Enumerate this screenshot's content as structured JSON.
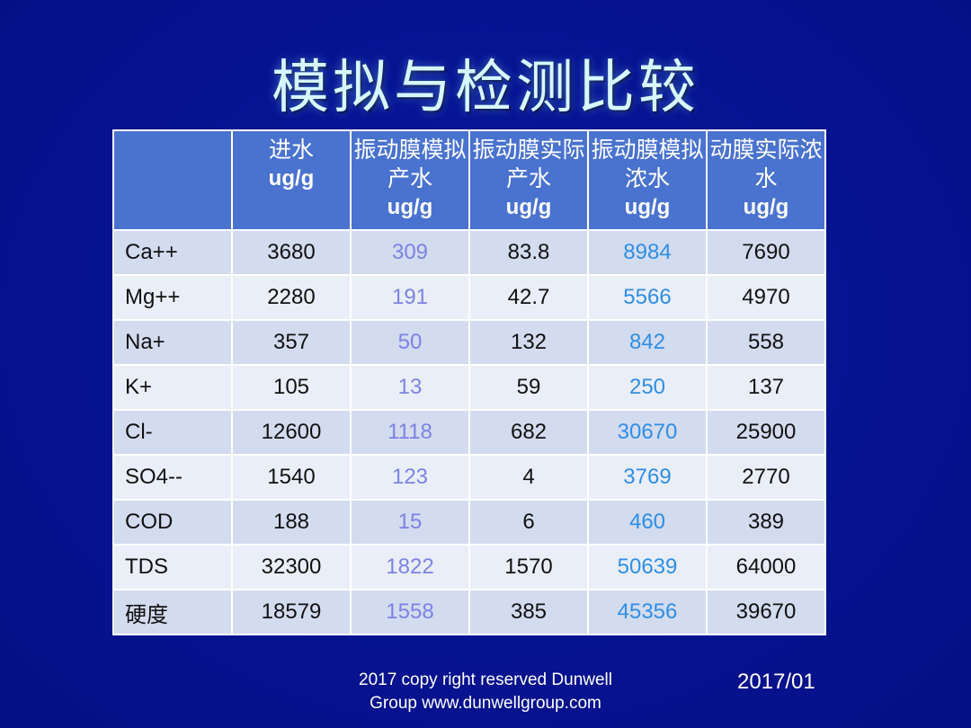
{
  "title": "模拟与检测比较",
  "table": {
    "headers": [
      {
        "label": "",
        "unit": ""
      },
      {
        "label": "进水",
        "unit": "ug/g"
      },
      {
        "label": "振动膜模拟产水",
        "unit": "ug/g"
      },
      {
        "label": "振动膜实际产水",
        "unit": "ug/g"
      },
      {
        "label": "振动膜模拟浓水",
        "unit": "ug/g"
      },
      {
        "label": "动膜实际浓水",
        "unit": "ug/g"
      }
    ],
    "rows": [
      [
        "Ca++",
        "3680",
        "309",
        "83.8",
        "8984",
        "7690"
      ],
      [
        "Mg++",
        "2280",
        "191",
        "42.7",
        "5566",
        "4970"
      ],
      [
        "Na+",
        "357",
        "50",
        "132",
        "842",
        "558"
      ],
      [
        "K+",
        "105",
        "13",
        "59",
        "250",
        "137"
      ],
      [
        "Cl-",
        "12600",
        "1118",
        "682",
        "30670",
        "25900"
      ],
      [
        "SO4--",
        "1540",
        "123",
        "4",
        "3769",
        "2770"
      ],
      [
        "COD",
        "188",
        "15",
        "6",
        "460",
        "389"
      ],
      [
        "TDS",
        "32300",
        "1822",
        "1570",
        "50639",
        "64000"
      ],
      [
        "硬度",
        "18579",
        "1558",
        "385",
        "45356",
        "39670"
      ]
    ]
  },
  "footer": {
    "line1": "2017 copy right reserved Dunwell",
    "line2": "Group www.dunwellgroup.com",
    "date": "2017/01"
  },
  "colors": {
    "background": "#061391",
    "title": "#d7f7ff",
    "header_bg": "#4a72cf",
    "row_odd": "#d3dbef",
    "row_even": "#eaeef8",
    "sim_product_text": "#7c83e6",
    "sim_concentrate_text": "#2f8ee6"
  }
}
